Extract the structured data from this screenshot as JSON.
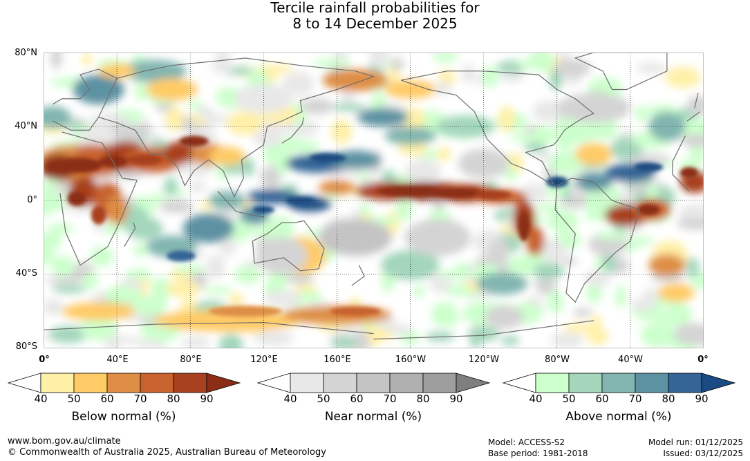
{
  "title": {
    "line1": "Tercile rainfall probabilities for",
    "line2": "8 to 14 December 2025"
  },
  "map": {
    "lat_labels": [
      "80°N",
      "40°N",
      "0°",
      "40°S",
      "80°S"
    ],
    "lon_labels": [
      "0°",
      "40°E",
      "80°E",
      "120°E",
      "160°E",
      "160°W",
      "120°W",
      "80°W",
      "40°W",
      "0°"
    ],
    "colors": {
      "below": [
        "#fff0a8",
        "#ffcb66",
        "#de8e45",
        "#c8622e",
        "#a8411f",
        "#8b2e16"
      ],
      "near": [
        "#e8e8e8",
        "#d4d4d4",
        "#c4c4c4",
        "#b0b0b0",
        "#9e9e9e",
        "#7f7f7f"
      ],
      "above": [
        "#ccffcc",
        "#a3d6bb",
        "#82b5b0",
        "#5d92a3",
        "#346596",
        "#1a4b82"
      ],
      "land_outline": "#6e6e6e"
    }
  },
  "legends": [
    {
      "title": "Below normal (%)",
      "ticks": [
        "40",
        "50",
        "60",
        "70",
        "80",
        "90"
      ],
      "colors": [
        "#ffffff",
        "#fff0a8",
        "#ffcb66",
        "#de8e45",
        "#c8622e",
        "#a8411f",
        "#8b2e16"
      ]
    },
    {
      "title": "Near normal (%)",
      "ticks": [
        "40",
        "50",
        "60",
        "70",
        "80",
        "90"
      ],
      "colors": [
        "#ffffff",
        "#e8e8e8",
        "#d4d4d4",
        "#c4c4c4",
        "#b0b0b0",
        "#9e9e9e",
        "#7f7f7f"
      ]
    },
    {
      "title": "Above normal (%)",
      "ticks": [
        "40",
        "50",
        "60",
        "70",
        "80",
        "90"
      ],
      "colors": [
        "#ffffff",
        "#ccffcc",
        "#a3d6bb",
        "#82b5b0",
        "#5d92a3",
        "#346596",
        "#1a4b82"
      ]
    }
  ],
  "footer": {
    "website": "www.bom.gov.au/climate",
    "copyright": "© Commonwealth of Australia 2025, Australian Bureau of Meteorology",
    "model": "Model: ACCESS-S2",
    "base_period": "Base period: 1981-2018",
    "model_run": "Model run: 01/12/2025",
    "issued": "Issued: 03/12/2025"
  }
}
